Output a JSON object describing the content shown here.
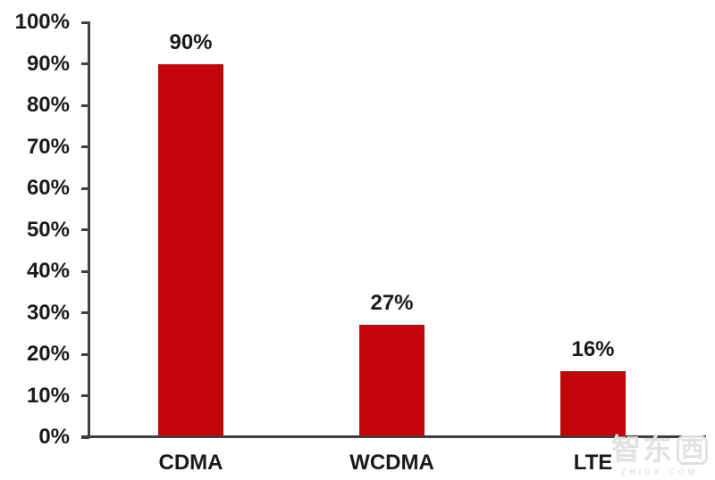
{
  "chart_data": {
    "type": "bar",
    "categories": [
      "CDMA",
      "WCDMA",
      "LTE"
    ],
    "values": [
      90,
      27,
      16
    ],
    "value_labels": [
      "90%",
      "27%",
      "16%"
    ],
    "title": "",
    "xlabel": "",
    "ylabel": "",
    "ylim": [
      0,
      100
    ],
    "y_tick_step": 10,
    "y_tick_labels": [
      "0%",
      "10%",
      "20%",
      "30%",
      "40%",
      "50%",
      "60%",
      "70%",
      "80%",
      "90%",
      "100%"
    ],
    "grid": "off",
    "legend": "none",
    "colors": {
      "bar": "#c20508",
      "axis": "#3f3f3f",
      "text": "#1a1a1a"
    }
  },
  "watermark": {
    "text_main": "智东",
    "text_boxed": "西",
    "subtext": "ZHIDX.COM",
    "color": "#e1e1e1"
  }
}
